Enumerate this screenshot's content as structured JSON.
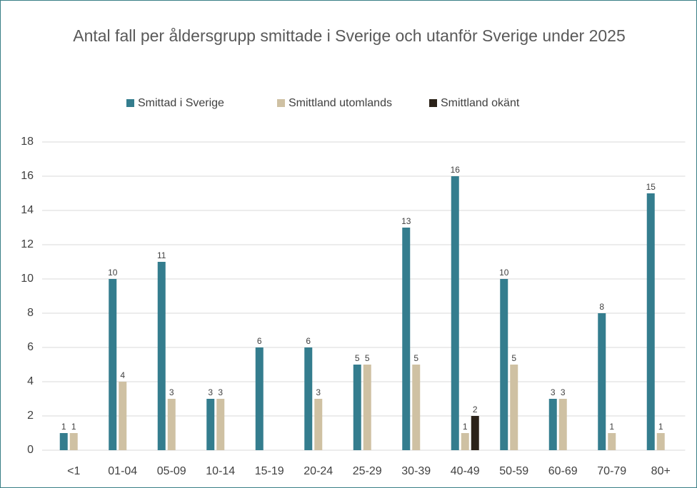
{
  "chart_data": {
    "type": "bar",
    "title": "Antal fall per åldersgrupp smittade i Sverige och utanför Sverige under 2025",
    "categories": [
      "<1",
      "01-04",
      "05-09",
      "10-14",
      "15-19",
      "20-24",
      "25-29",
      "30-39",
      "40-49",
      "50-59",
      "60-69",
      "70-79",
      "80+"
    ],
    "series": [
      {
        "name": "Smittad i Sverige",
        "color": "#347d8e",
        "values": [
          1,
          10,
          11,
          3,
          6,
          6,
          5,
          13,
          16,
          10,
          3,
          8,
          15
        ]
      },
      {
        "name": "Smittland utomlands",
        "color": "#cfc1a3",
        "values": [
          1,
          4,
          3,
          3,
          null,
          3,
          5,
          5,
          1,
          5,
          3,
          1,
          1
        ]
      },
      {
        "name": "Smittland okänt",
        "color": "#2b2219",
        "values": [
          null,
          null,
          null,
          null,
          null,
          null,
          null,
          null,
          2,
          null,
          null,
          null,
          null
        ]
      }
    ],
    "ylim": [
      0,
      18
    ],
    "yticks": [
      0,
      2,
      4,
      6,
      8,
      10,
      12,
      14,
      16,
      18
    ],
    "grid": true,
    "legend": "top"
  }
}
